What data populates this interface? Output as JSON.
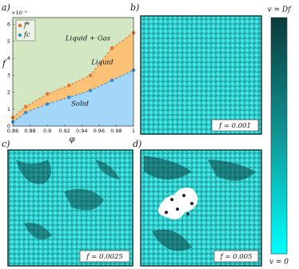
{
  "chart_data": {
    "type": "line",
    "panel": "a)",
    "multiplier": "×10⁻³",
    "x_label": "φ",
    "y_label": "f",
    "xlim": [
      0.86,
      1
    ],
    "xticks": [
      0.86,
      0.88,
      0.9,
      0.92,
      0.94,
      0.96,
      0.98,
      1
    ],
    "ylim": [
      0,
      6.4
    ],
    "yticks": [
      0,
      1,
      2,
      3,
      4,
      5,
      6
    ],
    "regions": [
      "Liquid + Gas",
      "Liquid",
      "Solid"
    ],
    "region_colors": [
      "#d3e7c3",
      "#fbc277",
      "#a3d6f8"
    ],
    "legend": "upper left",
    "series": [
      {
        "name": "f*",
        "color": "#e5702e",
        "x": [
          0.86,
          0.875,
          0.9,
          0.925,
          0.95,
          0.975,
          1
        ],
        "values": [
          0.5,
          1.15,
          1.9,
          2.4,
          3.0,
          4.6,
          5.5
        ]
      },
      {
        "name": "fc",
        "color": "#3a8dc8",
        "x": [
          0.86,
          0.875,
          0.9,
          0.925,
          0.95,
          0.975,
          1
        ],
        "values": [
          0.25,
          0.8,
          1.3,
          1.7,
          2.1,
          2.7,
          3.3
        ]
      }
    ]
  },
  "panels": [
    {
      "letter": "b)",
      "label": "f = 0.001"
    },
    {
      "letter": "c)",
      "label": "f = 0.0025"
    },
    {
      "letter": "d)",
      "label": "f = 0.005"
    }
  ],
  "colorbar": {
    "top": "v = Df",
    "bottom": "v = 0"
  }
}
